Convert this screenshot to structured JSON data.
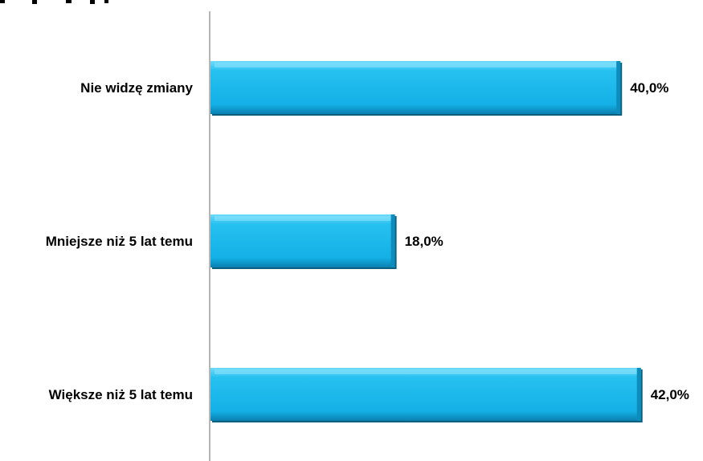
{
  "chart_data": {
    "type": "bar",
    "orientation": "horizontal",
    "title": "",
    "categories": [
      "Nie widzę zmiany",
      "Mniejsze niż 5 lat temu",
      "Większe niż 5 lat temu"
    ],
    "values": [
      40.0,
      18.0,
      42.0
    ],
    "data_labels": [
      "40,0%",
      "18,0%",
      "42,0%"
    ],
    "xlabel": "",
    "ylabel": "",
    "xlim": [
      0,
      45
    ],
    "grid": false,
    "legend": "none",
    "colors": {
      "bar_fill": "#1ab8ee",
      "bar_fill_light": "#5fd3f7",
      "bar_shadow": "#0d5f7e",
      "axis": "#b0b0b0"
    }
  }
}
